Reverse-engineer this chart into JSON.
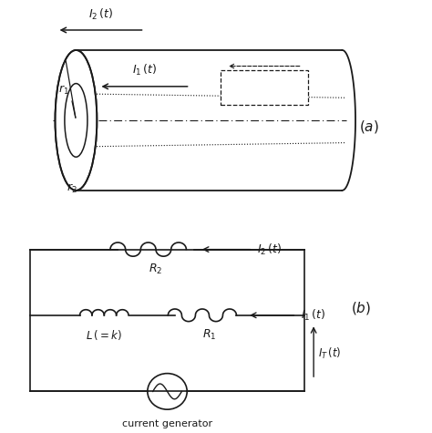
{
  "bg_color": "#ffffff",
  "line_color": "#1a1a1a",
  "fig_width": 4.74,
  "fig_height": 4.75,
  "dpi": 100
}
